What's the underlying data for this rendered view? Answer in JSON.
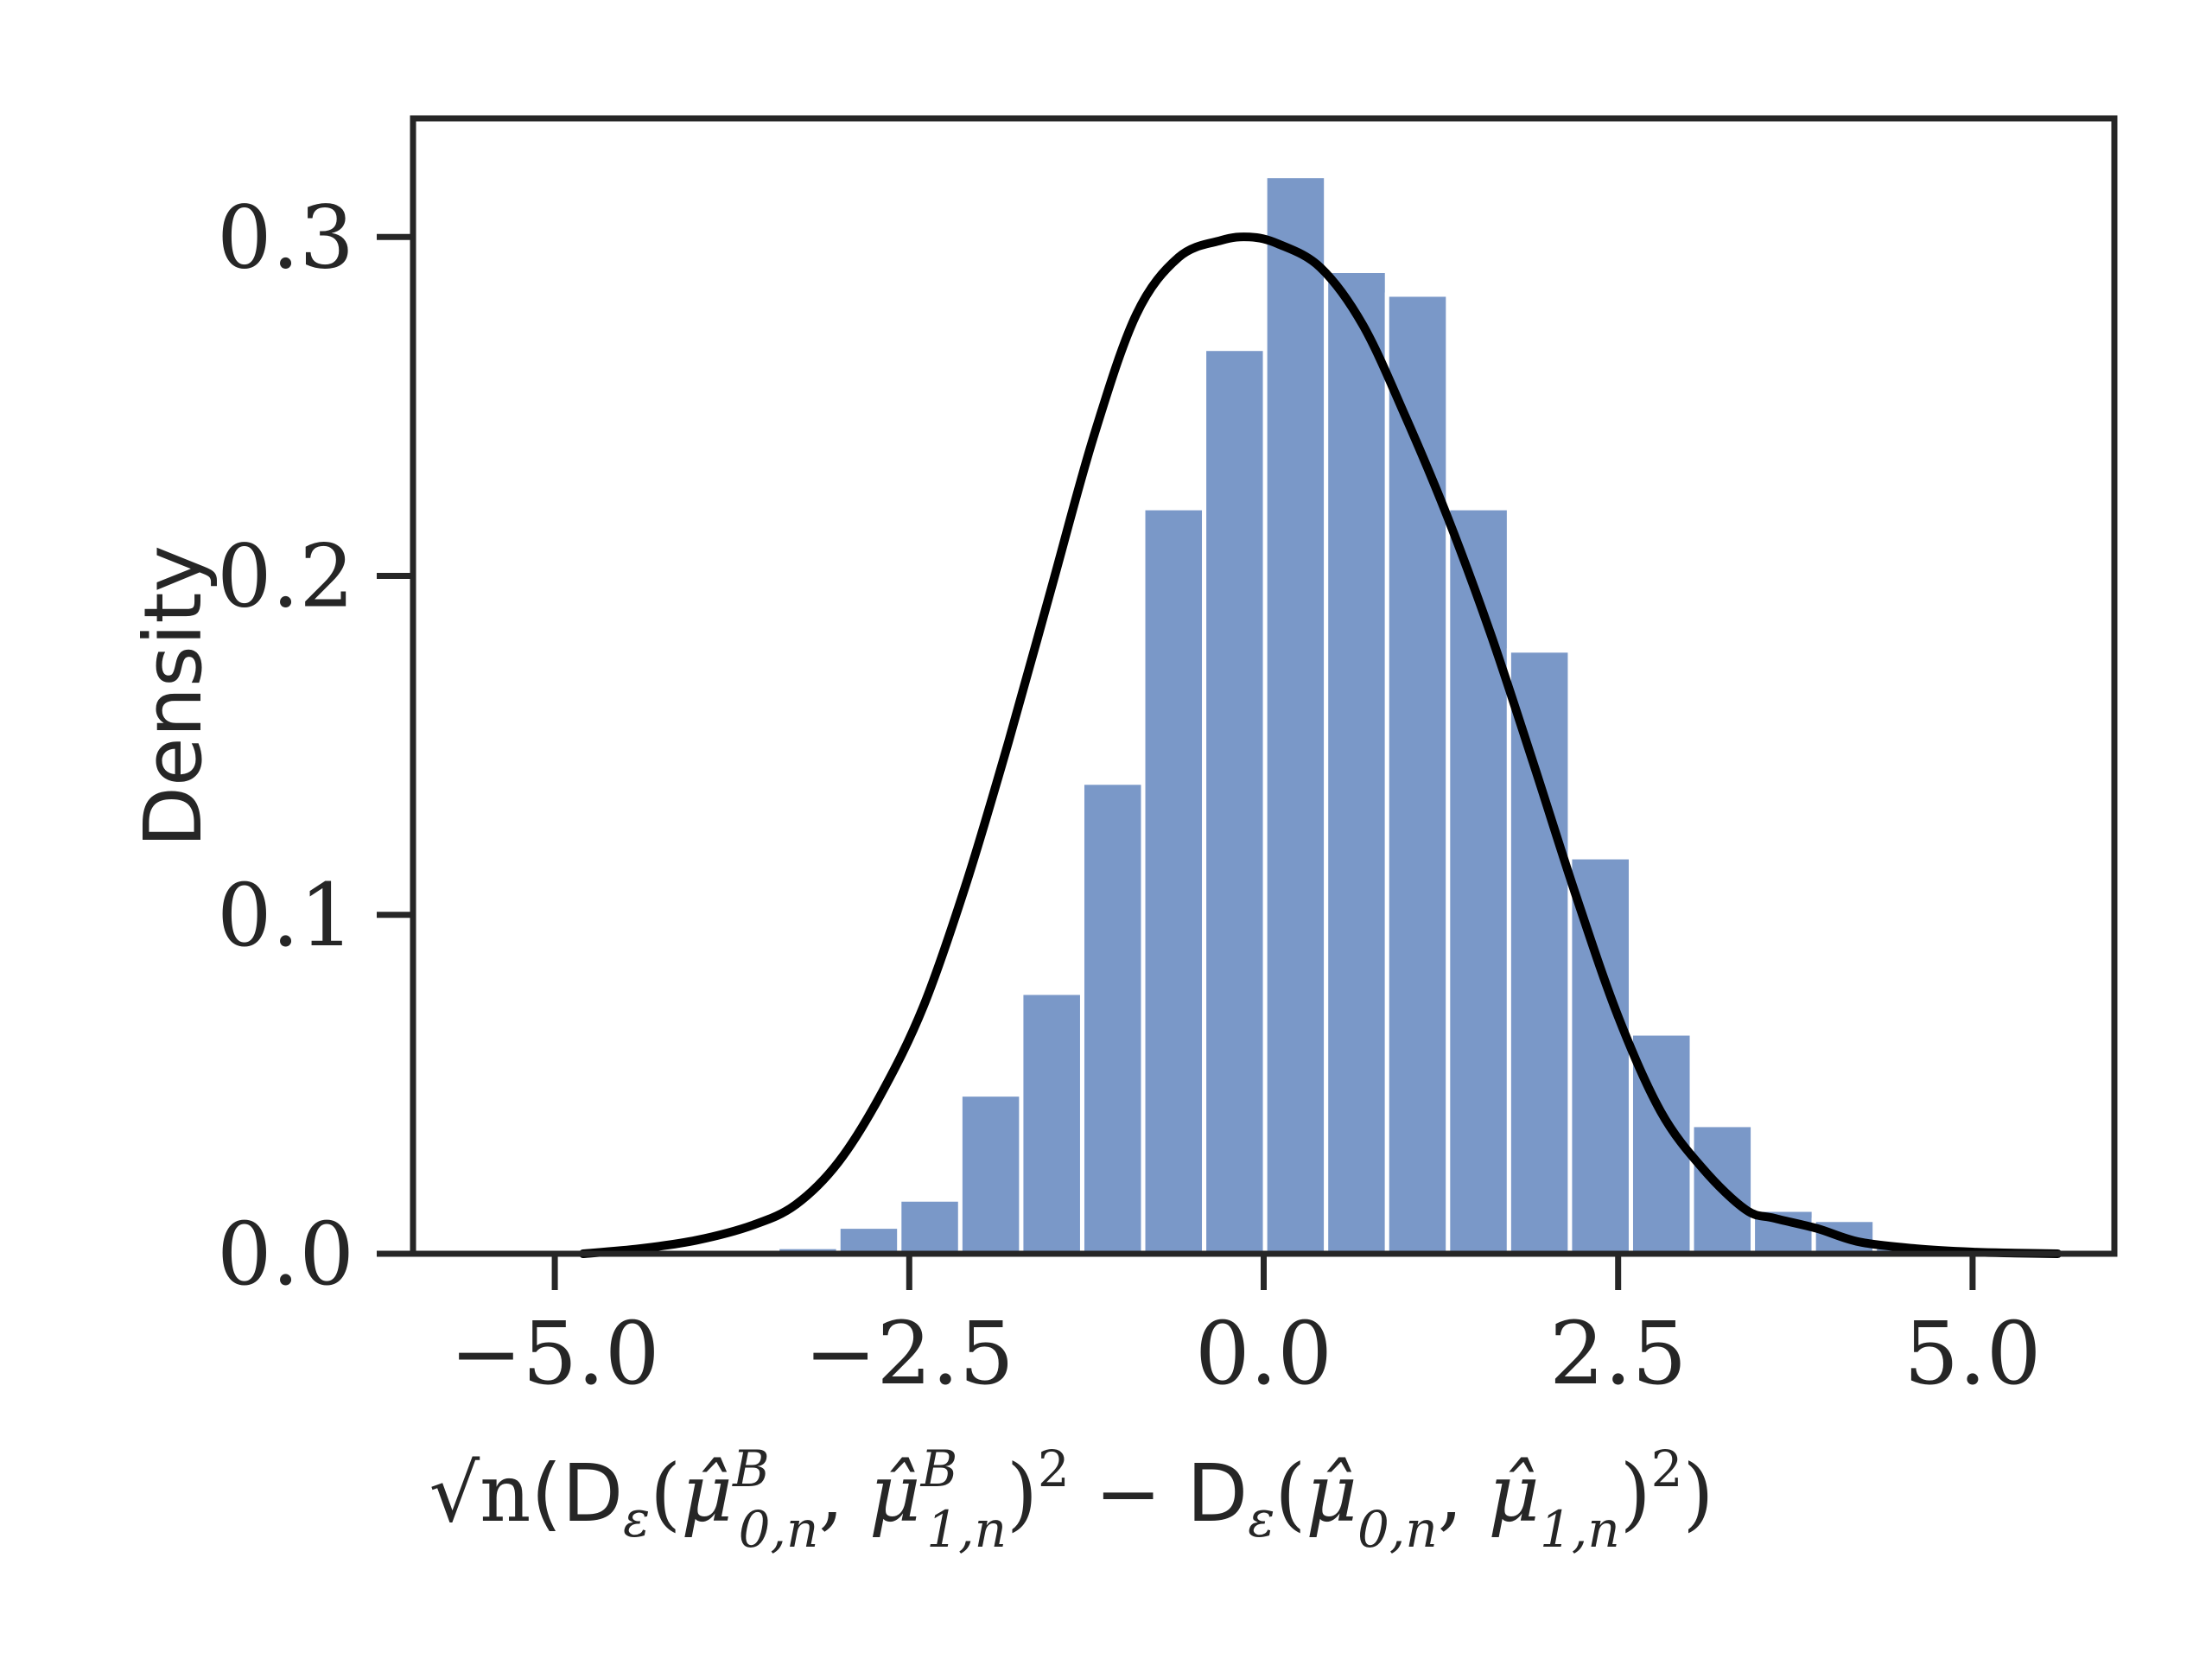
{
  "chart_data": {
    "type": "bar",
    "ylabel": "Density",
    "xlabel": {
      "sqrt_n": "√n",
      "part1": "(D",
      "eps1": "ε",
      "part2": "(",
      "mu1": "μ̂",
      "sup1": "B",
      "sub1": "0,n",
      "comma1": ", ",
      "mu2": "μ̂",
      "sup2": "B",
      "sub2": "1,n",
      "part3": ")",
      "sq1": "2",
      "minus": " − D",
      "eps2": "ε",
      "part4": "(",
      "mu3": "μ̂",
      "sub3": "0,n",
      "comma2": ", ",
      "mu4": "μ̂",
      "sub4": "1,n",
      "part5": ")",
      "sq2": "2",
      "part6": ")"
    },
    "xlim": [
      -6.0,
      6.0
    ],
    "ylim": [
      0.0,
      0.335
    ],
    "x_ticks": [
      -5.0,
      -2.5,
      0.0,
      2.5,
      5.0
    ],
    "x_tick_labels": [
      "−5.0",
      "−2.5",
      "0.0",
      "2.5",
      "5.0"
    ],
    "y_ticks": [
      0.0,
      0.1,
      0.2,
      0.3
    ],
    "y_tick_labels": [
      "0.0",
      "0.1",
      "0.2",
      "0.3"
    ],
    "bar_color": "#7a98c8",
    "bar_edge_color": "#ffffff",
    "curve_color": "#000000",
    "bins": [
      {
        "x0": -3.43,
        "x1": -3.0,
        "density": 0.002
      },
      {
        "x0": -3.0,
        "x1": -2.57,
        "density": 0.008
      },
      {
        "x0": -2.57,
        "x1": -2.14,
        "density": 0.016
      },
      {
        "x0": -2.14,
        "x1": -1.71,
        "density": 0.047
      },
      {
        "x0": -1.71,
        "x1": -1.28,
        "density": 0.077
      },
      {
        "x0": -1.28,
        "x1": -0.85,
        "density": 0.139
      },
      {
        "x0": -0.85,
        "x1": -0.42,
        "density": 0.22
      },
      {
        "x0": -0.42,
        "x1": 0.01,
        "density": 0.267
      },
      {
        "x0": 0.01,
        "x1": 0.44,
        "density": 0.318
      },
      {
        "x0": 0.44,
        "x1": 0.87,
        "density": 0.29
      },
      {
        "x0": 0.87,
        "x1": 1.3,
        "density": 0.283
      },
      {
        "x0": 1.3,
        "x1": 1.73,
        "density": 0.22
      },
      {
        "x0": 1.73,
        "x1": 2.16,
        "density": 0.178
      },
      {
        "x0": 2.16,
        "x1": 2.59,
        "density": 0.117
      },
      {
        "x0": 2.59,
        "x1": 3.02,
        "density": 0.065
      },
      {
        "x0": 3.02,
        "x1": 3.45,
        "density": 0.038
      },
      {
        "x0": 3.45,
        "x1": 3.88,
        "density": 0.013
      },
      {
        "x0": 3.88,
        "x1": 4.31,
        "density": 0.01
      },
      {
        "x0": 4.31,
        "x1": 4.74,
        "density": 0.002
      }
    ],
    "kde_curve": {
      "x": [
        -4.8,
        -4.4,
        -4.0,
        -3.6,
        -3.3,
        -3.0,
        -2.7,
        -2.4,
        -2.1,
        -1.8,
        -1.5,
        -1.2,
        -0.9,
        -0.6,
        -0.3,
        -0.1,
        0.1,
        0.4,
        0.7,
        1.0,
        1.3,
        1.6,
        1.9,
        2.2,
        2.5,
        2.8,
        3.1,
        3.4,
        3.6,
        3.9,
        4.2,
        4.6,
        5.0,
        5.3,
        5.6
      ],
      "y": [
        0.0,
        0.0015,
        0.004,
        0.0085,
        0.0145,
        0.027,
        0.047,
        0.073,
        0.109,
        0.151,
        0.196,
        0.241,
        0.277,
        0.294,
        0.299,
        0.3,
        0.298,
        0.291,
        0.274,
        0.247,
        0.217,
        0.183,
        0.145,
        0.106,
        0.07,
        0.042,
        0.025,
        0.013,
        0.0105,
        0.0075,
        0.0035,
        0.0015,
        0.0005,
        0.0002,
        0.0
      ]
    }
  }
}
